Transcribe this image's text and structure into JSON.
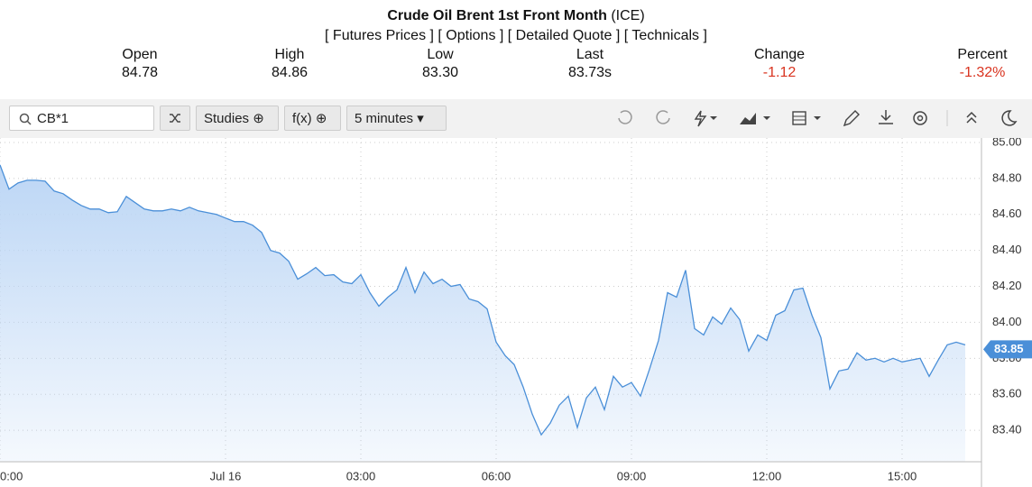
{
  "header": {
    "title": "Crude Oil Brent 1st Front Month",
    "exchange": "(ICE)",
    "links": [
      "[ Futures Prices ]",
      "[ Options ]",
      "[ Detailed Quote ]",
      "[ Technicals ]"
    ]
  },
  "quote": [
    {
      "label": "Open",
      "value": "84.78"
    },
    {
      "label": "High",
      "value": "84.86"
    },
    {
      "label": "Low",
      "value": "83.30"
    },
    {
      "label": "Last",
      "value": "83.73s"
    },
    {
      "label": "Change",
      "value": "-1.12"
    },
    {
      "label": "Percent",
      "value": "-1.32%"
    }
  ],
  "toolbar": {
    "symbol": "CB*1",
    "studies": "Studies",
    "fx": "f(x)",
    "interval": "5 minutes"
  },
  "chart_data": {
    "type": "area",
    "color": "#4a8fd8",
    "grid": true,
    "current_price": 83.85,
    "values": [
      84.875,
      84.74,
      84.775,
      84.79,
      84.79,
      84.785,
      84.73,
      84.715,
      84.68,
      84.65,
      84.63,
      84.63,
      84.61,
      84.615,
      84.7,
      84.665,
      84.63,
      84.62,
      84.62,
      84.63,
      84.62,
      84.64,
      84.62,
      84.61,
      84.6,
      84.58,
      84.56,
      84.56,
      84.54,
      84.5,
      84.4,
      84.385,
      84.34,
      84.24,
      84.27,
      84.305,
      84.26,
      84.265,
      84.225,
      84.215,
      84.265,
      84.165,
      84.09,
      84.14,
      84.18,
      84.305,
      84.165,
      84.28,
      84.215,
      84.24,
      84.2,
      84.21,
      84.13,
      84.115,
      84.075,
      83.89,
      83.815,
      83.765,
      83.64,
      83.49,
      83.375,
      83.44,
      83.54,
      83.59,
      83.415,
      83.58,
      83.64,
      83.515,
      83.7,
      83.64,
      83.665,
      83.59,
      83.74,
      83.9,
      84.165,
      84.14,
      84.29,
      83.965,
      83.93,
      84.03,
      83.99,
      84.08,
      84.015,
      83.84,
      83.93,
      83.9,
      84.04,
      84.065,
      84.18,
      84.19,
      84.04,
      83.915,
      83.63,
      83.73,
      83.74,
      83.83,
      83.79,
      83.8,
      83.78,
      83.8,
      83.78,
      83.79,
      83.8,
      83.7,
      83.79,
      83.875,
      83.89,
      83.875
    ],
    "xlim": [
      0,
      108.8
    ],
    "xticks": [
      {
        "value": 0,
        "label": "0:00"
      },
      {
        "value": 25,
        "label": "Jul 16"
      },
      {
        "value": 40,
        "label": "03:00"
      },
      {
        "value": 55,
        "label": "06:00"
      },
      {
        "value": 70,
        "label": "09:00"
      },
      {
        "value": 85,
        "label": "12:00"
      },
      {
        "value": 100,
        "label": "15:00"
      }
    ],
    "ylim": [
      83.225,
      85.025
    ],
    "yticks": [
      {
        "value": 83.4,
        "label": "83.40"
      },
      {
        "value": 83.6,
        "label": "83.60"
      },
      {
        "value": 83.8,
        "label": "83.80"
      },
      {
        "value": 84,
        "label": "84.00"
      },
      {
        "value": 84.2,
        "label": "84.20"
      },
      {
        "value": 84.4,
        "label": "84.40"
      },
      {
        "value": 84.6,
        "label": "84.60"
      },
      {
        "value": 84.8,
        "label": "84.80"
      },
      {
        "value": 85,
        "label": "85.00"
      }
    ]
  }
}
